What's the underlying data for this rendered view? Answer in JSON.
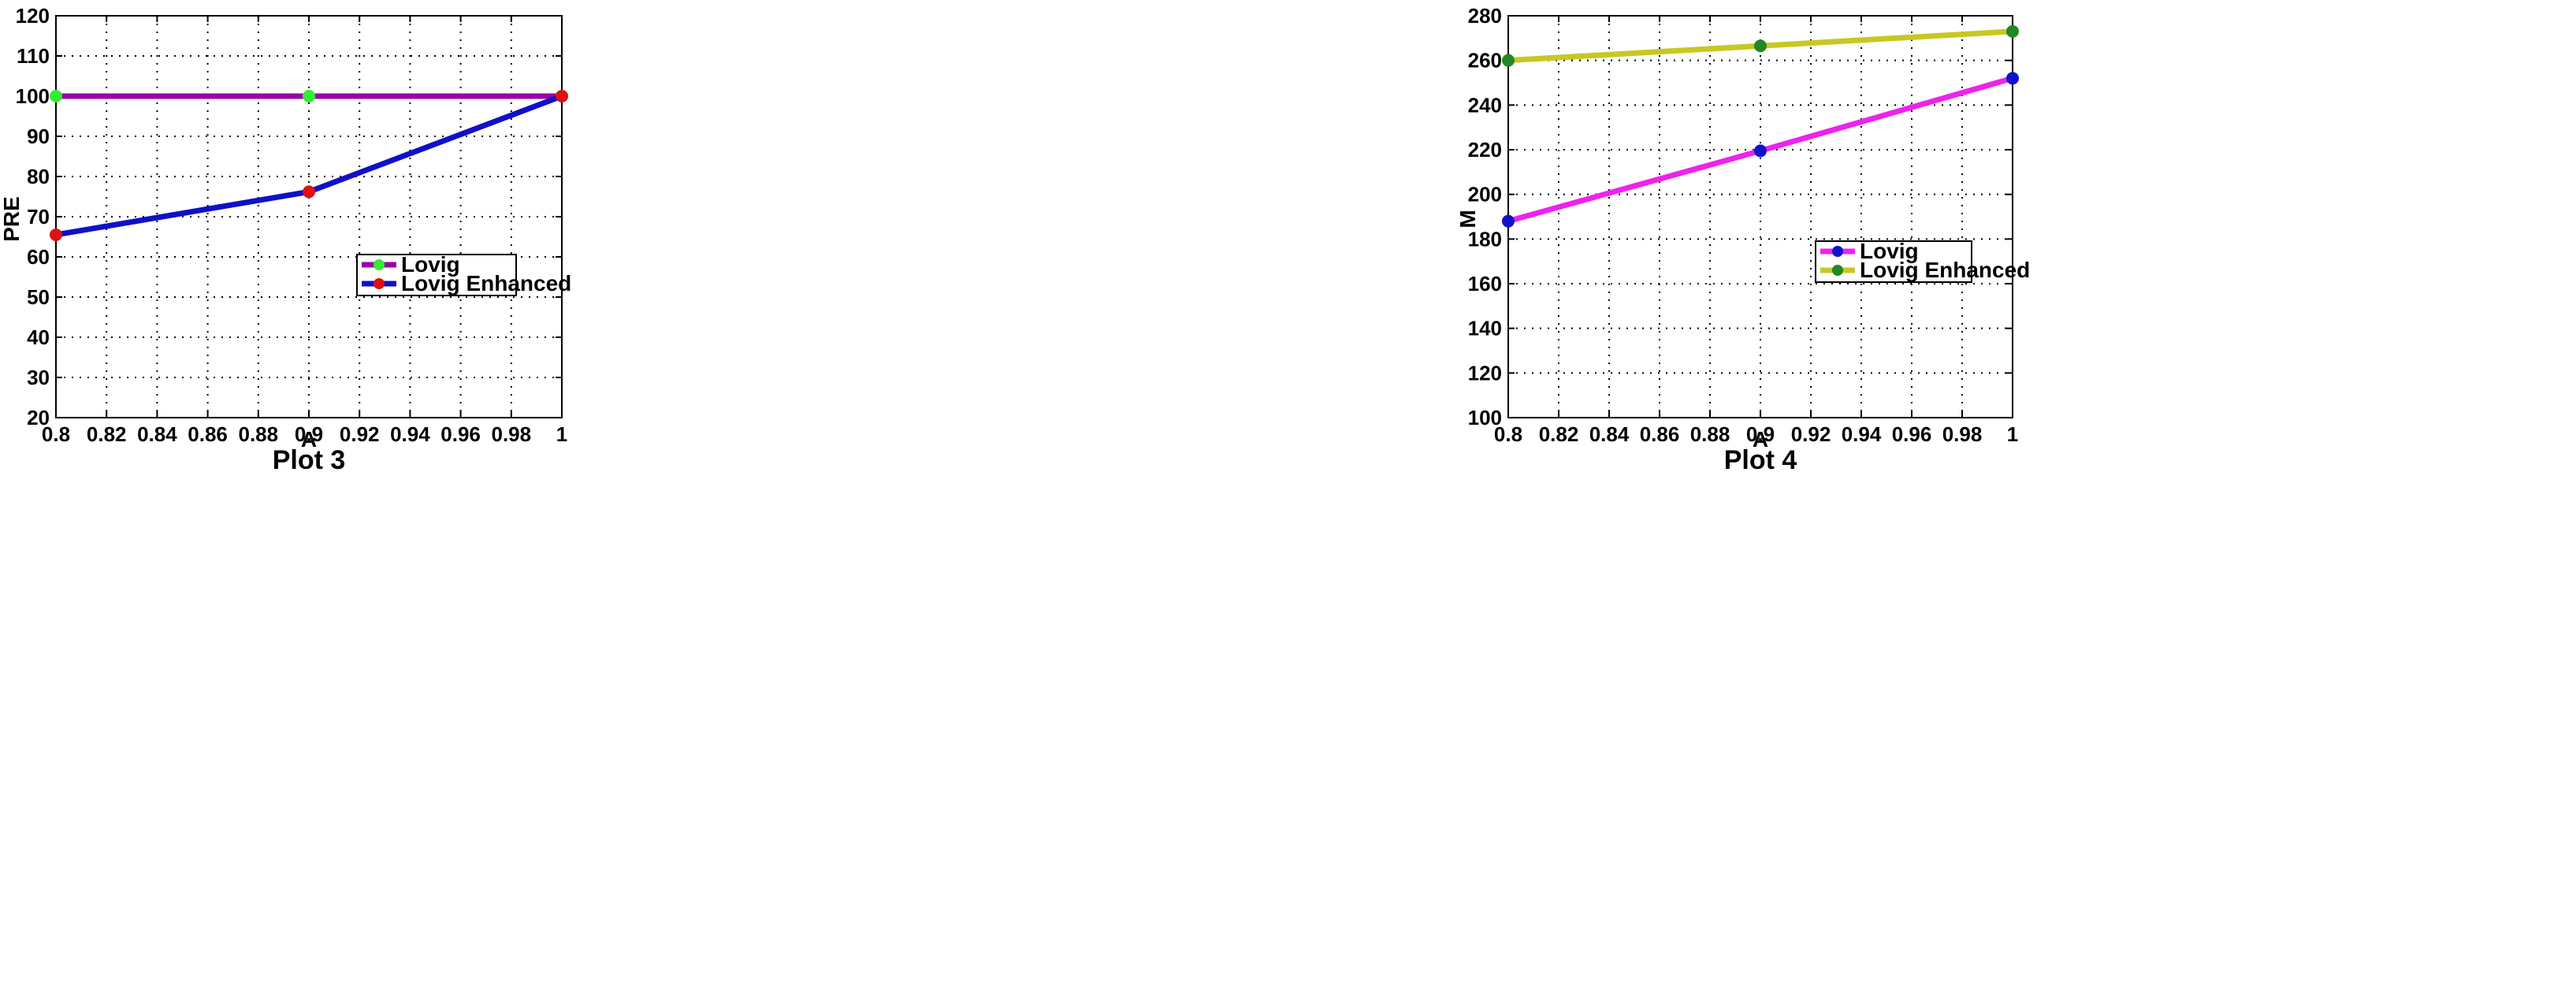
{
  "chart_data": [
    {
      "type": "line",
      "caption": "Plot 3",
      "xlabel": "A",
      "ylabel": "PRE",
      "xlim": [
        0.8,
        1
      ],
      "ylim": [
        20,
        120
      ],
      "xticks": [
        "0.8",
        "0.82",
        "0.84",
        "0.86",
        "0.88",
        "0.9",
        "0.92",
        "0.94",
        "0.96",
        "0.98",
        "1"
      ],
      "yticks": [
        "20",
        "30",
        "40",
        "50",
        "60",
        "70",
        "80",
        "90",
        "100",
        "110",
        "120"
      ],
      "grid": true,
      "legend_position": "center-right",
      "series": [
        {
          "name": "Lovig",
          "x": [
            0.8,
            0.9,
            1
          ],
          "values": [
            100,
            100,
            100
          ],
          "line_color": "#9900aa",
          "marker_color": "#33ee33"
        },
        {
          "name": "Lovig Enhanced",
          "x": [
            0.8,
            0.9,
            1
          ],
          "values": [
            65.5,
            76.2,
            100
          ],
          "line_color": "#1010c8",
          "marker_color": "#dd1111"
        }
      ]
    },
    {
      "type": "line",
      "caption": "Plot 4",
      "xlabel": "A",
      "ylabel": "M",
      "xlim": [
        0.8,
        1
      ],
      "ylim": [
        100,
        280
      ],
      "xticks": [
        "0.8",
        "0.82",
        "0.84",
        "0.86",
        "0.88",
        "0.9",
        "0.92",
        "0.94",
        "0.96",
        "0.98",
        "1"
      ],
      "yticks": [
        "100",
        "120",
        "140",
        "160",
        "180",
        "200",
        "220",
        "240",
        "260",
        "280"
      ],
      "grid": true,
      "legend_position": "center-right",
      "series": [
        {
          "name": "Lovig",
          "x": [
            0.8,
            0.9,
            1
          ],
          "values": [
            188,
            219.5,
            252
          ],
          "line_color": "#ee22ee",
          "marker_color": "#1111cc"
        },
        {
          "name": "Lovig Enhanced",
          "x": [
            0.8,
            0.9,
            1
          ],
          "values": [
            260,
            266.5,
            273
          ],
          "line_color": "#c8c822",
          "marker_color": "#228822"
        }
      ]
    }
  ]
}
